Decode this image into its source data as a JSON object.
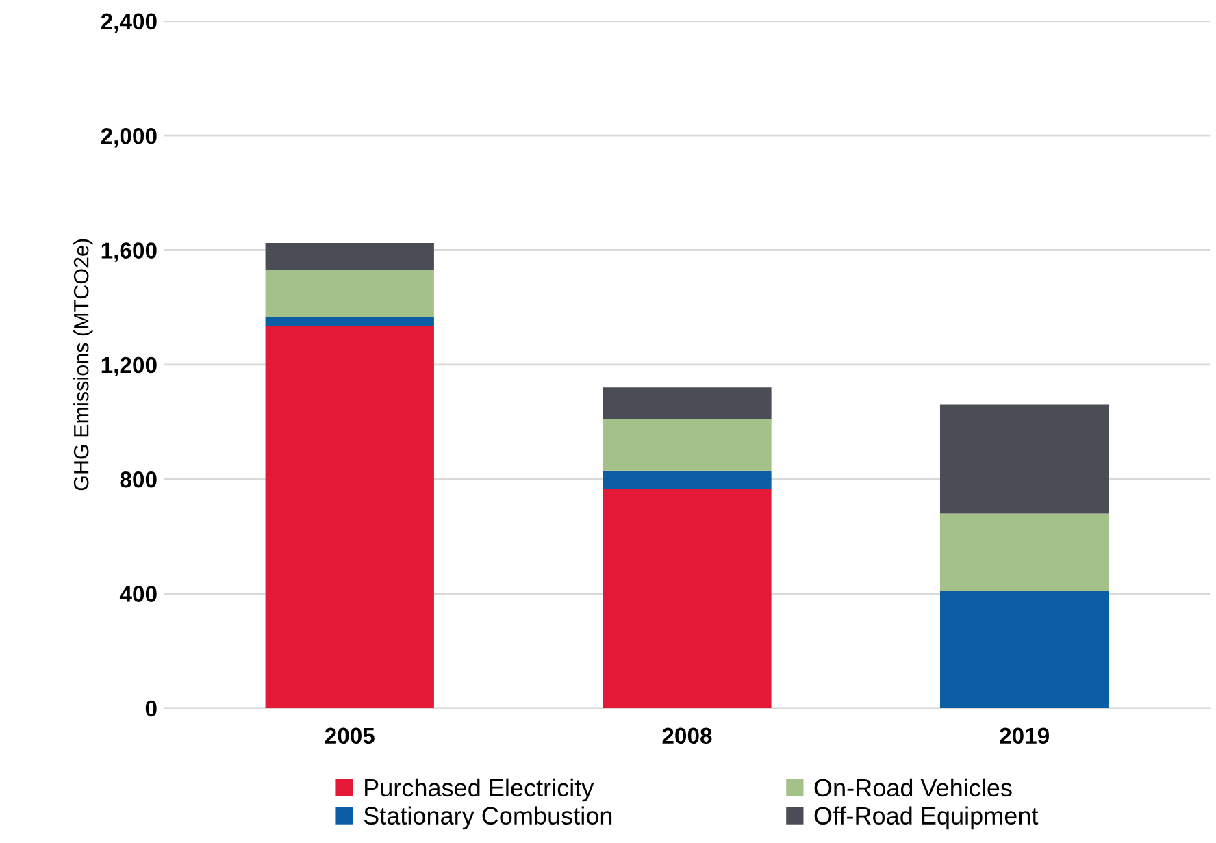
{
  "chart_data": {
    "type": "bar",
    "stacked": true,
    "ylabel": "GHG Emissions (MTCO2e)",
    "categories": [
      "2005",
      "2008",
      "2019"
    ],
    "series": [
      {
        "name": "Purchased Electricity",
        "color": "#e31937",
        "values": [
          1335,
          765,
          0
        ]
      },
      {
        "name": "Stationary Combustion",
        "color": "#0b5ea4",
        "values": [
          30,
          65,
          410
        ]
      },
      {
        "name": "On-Road Vehicles",
        "color": "#a5c18a",
        "values": [
          165,
          180,
          270
        ]
      },
      {
        "name": "Off-Road Equipment",
        "color": "#4a4d55",
        "values": [
          95,
          110,
          380
        ]
      }
    ],
    "ylim": [
      0,
      2400
    ],
    "yticks": [
      {
        "value": 0,
        "label": "0"
      },
      {
        "value": 400,
        "label": "400"
      },
      {
        "value": 800,
        "label": "800"
      },
      {
        "value": 1200,
        "label": "1,200"
      },
      {
        "value": 1600,
        "label": "1,600"
      },
      {
        "value": 2000,
        "label": "2,000"
      },
      {
        "value": 2400,
        "label": "2,400"
      }
    ],
    "grid": "y",
    "legend": "bottom"
  }
}
